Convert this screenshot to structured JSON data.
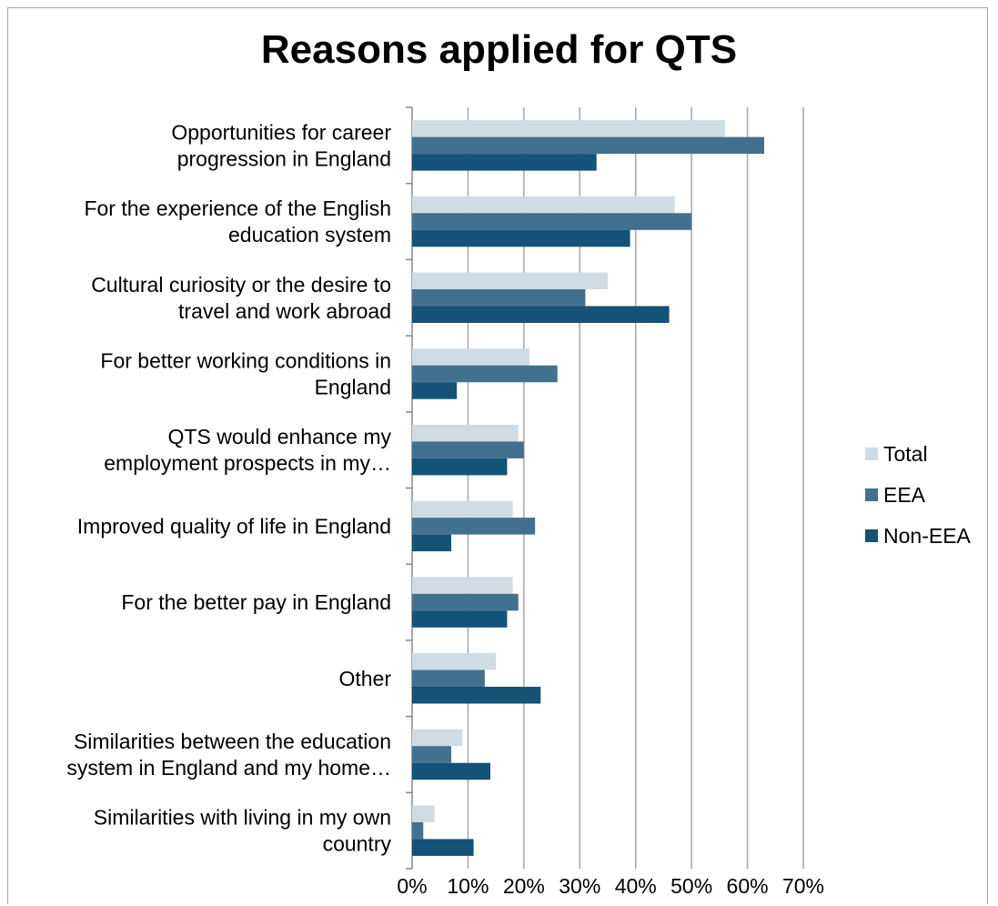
{
  "chart_data": {
    "type": "bar",
    "orientation": "horizontal",
    "title": "Reasons applied for QTS",
    "categories": [
      [
        "Opportunities for career",
        "progression in England"
      ],
      [
        "For the experience of the English",
        "education system"
      ],
      [
        "Cultural curiosity or the desire to",
        "travel and work abroad"
      ],
      [
        "For better working conditions in",
        "England"
      ],
      [
        "QTS would enhance my",
        "employment prospects in my…"
      ],
      [
        "Improved quality of life in England"
      ],
      [
        "For the better pay in England"
      ],
      [
        "Other"
      ],
      [
        "Similarities between the education",
        "system in England and my home…"
      ],
      [
        "Similarities with living in my own",
        "country"
      ]
    ],
    "series": [
      {
        "name": "Total",
        "color": "#d0dce5",
        "values": [
          0.56,
          0.47,
          0.35,
          0.21,
          0.19,
          0.18,
          0.18,
          0.15,
          0.09,
          0.04
        ]
      },
      {
        "name": "EEA",
        "color": "#42718f",
        "values": [
          0.63,
          0.5,
          0.31,
          0.26,
          0.2,
          0.22,
          0.19,
          0.13,
          0.07,
          0.02
        ]
      },
      {
        "name": "Non-EEA",
        "color": "#145277",
        "values": [
          0.33,
          0.39,
          0.46,
          0.08,
          0.17,
          0.07,
          0.17,
          0.23,
          0.14,
          0.11
        ]
      }
    ],
    "xlim": [
      0,
      0.7
    ],
    "xticks": [
      "0%",
      "10%",
      "20%",
      "30%",
      "40%",
      "50%",
      "60%",
      "70%"
    ],
    "grid": true,
    "legend_position": "right"
  }
}
